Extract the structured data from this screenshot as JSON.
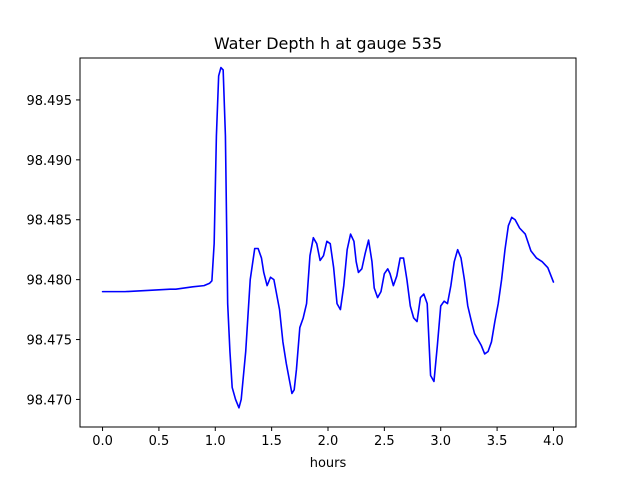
{
  "chart_data": {
    "type": "line",
    "title": "Water Depth h at gauge 535",
    "xlabel": "hours",
    "ylabel": "",
    "xlim": [
      -0.2,
      4.2
    ],
    "ylim": [
      98.4677,
      98.4985
    ],
    "xticks": [
      0.0,
      0.5,
      1.0,
      1.5,
      2.0,
      2.5,
      3.0,
      3.5,
      4.0
    ],
    "xtick_labels": [
      "0.0",
      "0.5",
      "1.0",
      "1.5",
      "2.0",
      "2.5",
      "3.0",
      "3.5",
      "4.0"
    ],
    "yticks": [
      98.47,
      98.475,
      98.48,
      98.485,
      98.49,
      98.495
    ],
    "ytick_labels": [
      "98.470",
      "98.475",
      "98.480",
      "98.485",
      "98.490",
      "98.495"
    ],
    "grid": false,
    "series": [
      {
        "color": "#0000ff",
        "x": [
          0.0,
          0.2,
          0.4,
          0.6,
          0.65,
          0.8,
          0.9,
          0.95,
          0.97,
          0.99,
          1.01,
          1.03,
          1.05,
          1.07,
          1.09,
          1.11,
          1.13,
          1.15,
          1.18,
          1.21,
          1.23,
          1.27,
          1.31,
          1.35,
          1.38,
          1.41,
          1.43,
          1.46,
          1.49,
          1.52,
          1.54,
          1.57,
          1.6,
          1.63,
          1.66,
          1.68,
          1.7,
          1.72,
          1.75,
          1.78,
          1.81,
          1.84,
          1.87,
          1.9,
          1.93,
          1.96,
          1.99,
          2.02,
          2.05,
          2.08,
          2.11,
          2.14,
          2.17,
          2.2,
          2.23,
          2.25,
          2.27,
          2.3,
          2.33,
          2.36,
          2.39,
          2.41,
          2.44,
          2.47,
          2.5,
          2.53,
          2.55,
          2.58,
          2.61,
          2.64,
          2.67,
          2.7,
          2.73,
          2.76,
          2.79,
          2.82,
          2.85,
          2.88,
          2.91,
          2.94,
          2.97,
          3.0,
          3.03,
          3.06,
          3.09,
          3.12,
          3.15,
          3.18,
          3.21,
          3.24,
          3.27,
          3.3,
          3.33,
          3.36,
          3.39,
          3.42,
          3.45,
          3.48,
          3.51,
          3.54,
          3.57,
          3.6,
          3.63,
          3.66,
          3.7,
          3.75,
          3.8,
          3.85,
          3.9,
          3.95,
          4.0
        ],
        "y": [
          98.479,
          98.479,
          98.4791,
          98.4792,
          98.4792,
          98.4794,
          98.4795,
          98.4797,
          98.4799,
          98.483,
          98.492,
          98.497,
          98.4977,
          98.4975,
          98.492,
          98.478,
          98.474,
          98.471,
          98.47,
          98.4693,
          98.47,
          98.474,
          98.48,
          98.4826,
          98.4826,
          98.4818,
          98.4806,
          98.4795,
          98.4802,
          98.48,
          98.479,
          98.4775,
          98.4748,
          98.473,
          98.4715,
          98.4705,
          98.4708,
          98.4725,
          98.476,
          98.4768,
          98.478,
          98.482,
          98.4835,
          98.483,
          98.4816,
          98.482,
          98.4832,
          98.483,
          98.481,
          98.478,
          98.4775,
          98.4795,
          98.4825,
          98.4838,
          98.4832,
          98.4815,
          98.4806,
          98.4809,
          98.4822,
          98.4833,
          98.4815,
          98.4793,
          98.4785,
          98.479,
          98.4805,
          98.4809,
          98.4805,
          98.4795,
          98.4803,
          98.4818,
          98.4818,
          98.48,
          98.4778,
          98.4768,
          98.4765,
          98.4785,
          98.4788,
          98.478,
          98.472,
          98.4715,
          98.4745,
          98.4778,
          98.4782,
          98.478,
          98.4795,
          98.4815,
          98.4825,
          98.4818,
          98.48,
          98.4778,
          98.4766,
          98.4755,
          98.475,
          98.4745,
          98.4738,
          98.474,
          98.4748,
          98.4765,
          98.478,
          98.48,
          98.4825,
          98.4845,
          98.4852,
          98.485,
          98.4843,
          98.4838,
          98.4824,
          98.4818,
          98.4815,
          98.481,
          98.4798
        ]
      }
    ]
  }
}
